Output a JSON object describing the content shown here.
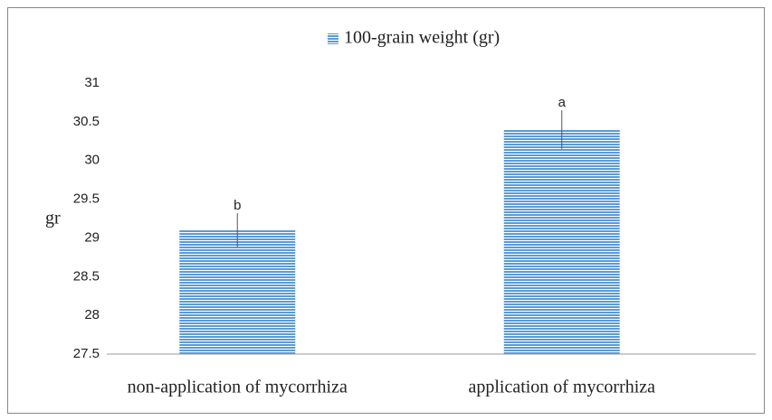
{
  "chart_data": {
    "type": "bar",
    "y_label": "gr",
    "categories": [
      "non-application of mycorrhiza",
      "application of mycorrhiza"
    ],
    "series": [
      {
        "name": "100-grain weight (gr)",
        "color": "#5b9bd5",
        "values": [
          29.1,
          30.4
        ],
        "errors": [
          0.22,
          0.25
        ],
        "annotations": [
          "b",
          "a"
        ]
      }
    ],
    "ylim": [
      27.5,
      31
    ],
    "yticks": [
      27.5,
      28,
      28.5,
      29,
      29.5,
      30,
      30.5,
      31
    ],
    "grid": false,
    "legend": "top"
  }
}
